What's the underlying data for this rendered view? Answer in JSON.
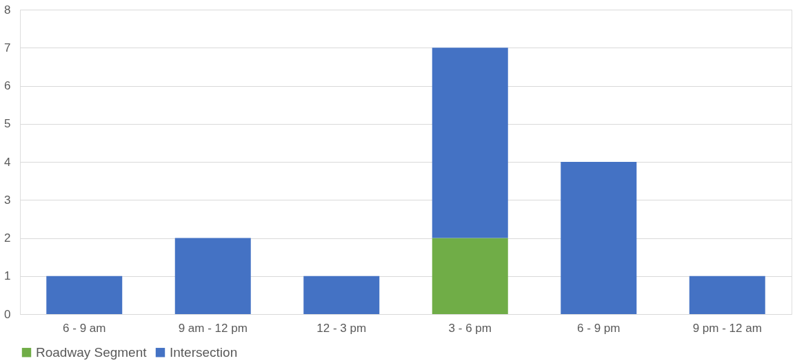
{
  "chart_data": {
    "type": "bar",
    "stacked": true,
    "categories": [
      "6 - 9 am",
      "9 am - 12 pm",
      "12 - 3 pm",
      "3 - 6 pm",
      "6 - 9 pm",
      "9 pm - 12 am"
    ],
    "series": [
      {
        "name": "Roadway Segment",
        "color": "#70ad47",
        "values": [
          0,
          0,
          0,
          2,
          0,
          0
        ]
      },
      {
        "name": "Intersection",
        "color": "#4472c4",
        "values": [
          1,
          2,
          1,
          5,
          4,
          1
        ]
      }
    ],
    "ylim": [
      0,
      8
    ],
    "yticks": [
      0,
      1,
      2,
      3,
      4,
      5,
      6,
      7,
      8
    ],
    "grid": "y",
    "legend": "bottom"
  }
}
